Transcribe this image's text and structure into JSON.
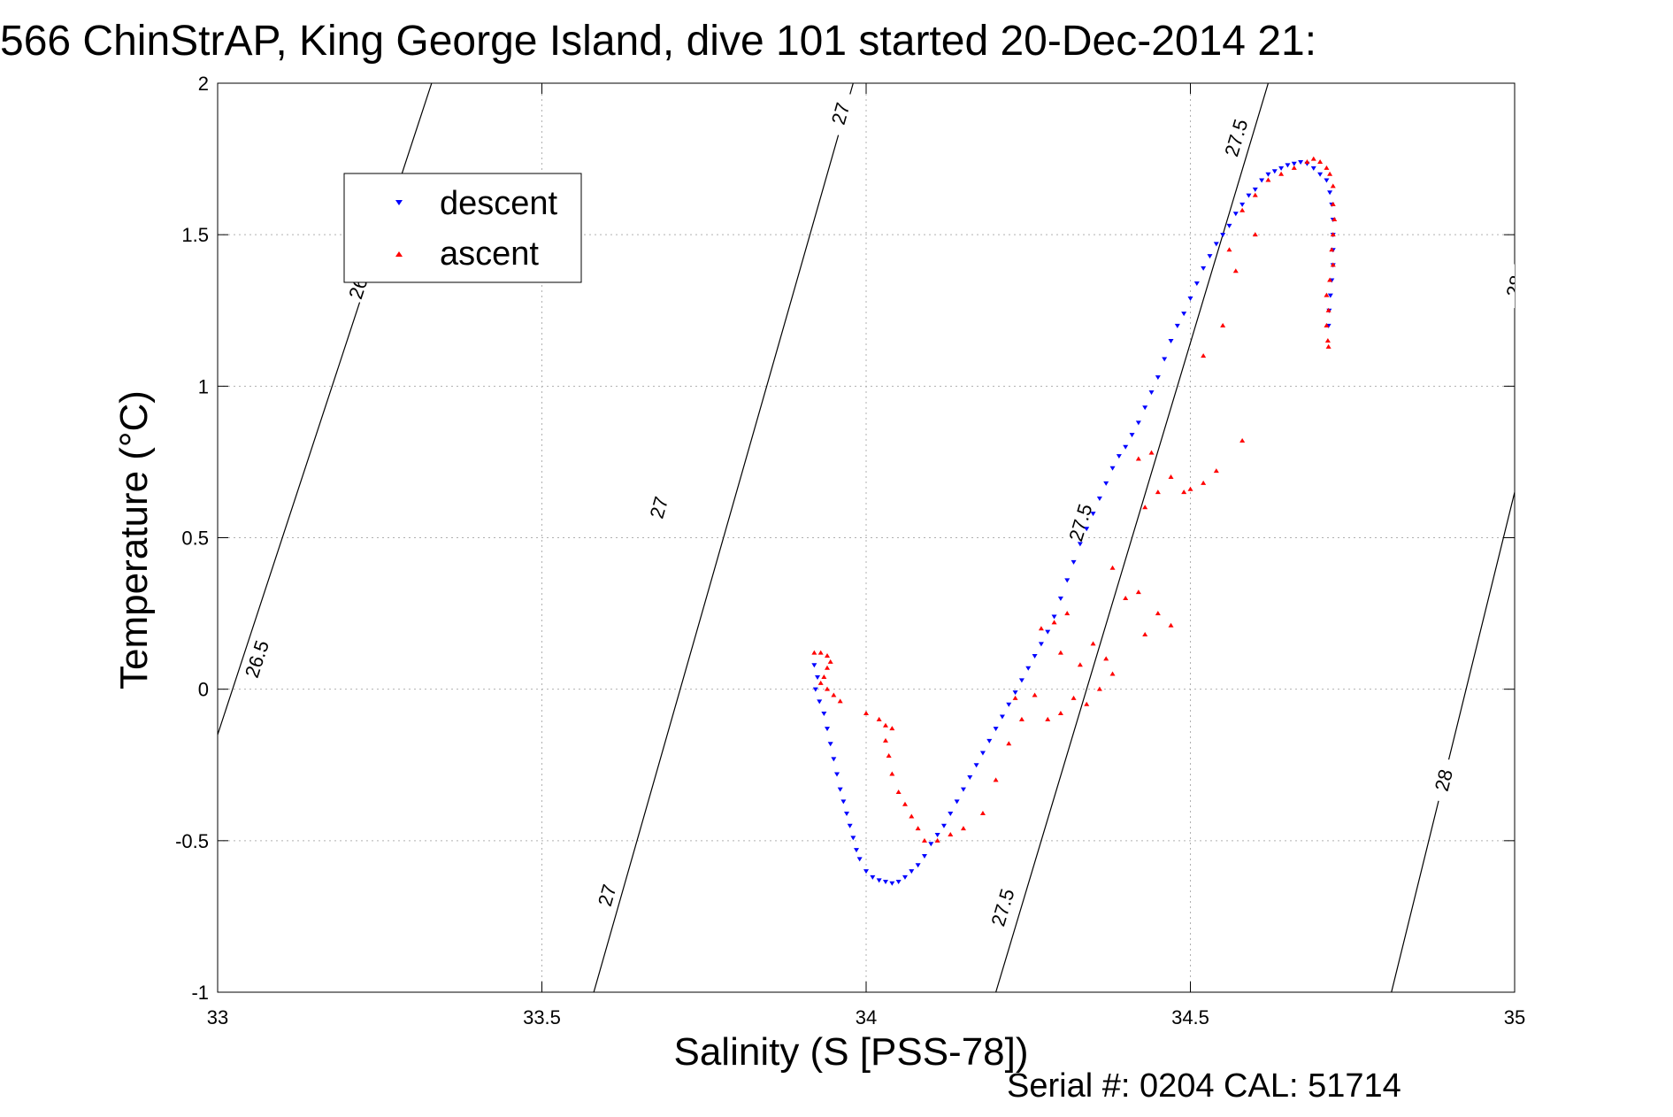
{
  "chart_data": {
    "type": "scatter",
    "title": "566 ChinStrAP, King George Island, dive 101 started 20-Dec-2014 21:",
    "xlabel": "Salinity (S [PSS-78])",
    "ylabel": "Temperature (°C)",
    "footer": "Serial #: 0204  CAL: 51714",
    "xlim": [
      33,
      35
    ],
    "ylim": [
      -1,
      2
    ],
    "xticks": [
      33,
      33.5,
      34,
      34.5,
      35
    ],
    "xtick_labels": [
      "33",
      "33.5",
      "34",
      "34.5",
      "35"
    ],
    "yticks": [
      -1,
      -0.5,
      0,
      0.5,
      1,
      1.5,
      2
    ],
    "ytick_labels": [
      "-1",
      "-0.5",
      "0",
      "0.5",
      "1",
      "1.5",
      "2"
    ],
    "grid": true,
    "legend_position": "top-left",
    "legend": [
      "descent",
      "ascent"
    ],
    "colors": {
      "descent": "#0000ff",
      "ascent": "#ff0000",
      "contour": "#000000",
      "grid": "#b0b0b0"
    },
    "density_contours": [
      {
        "value": "26.5",
        "points": [
          [
            33.0,
            -0.15
          ],
          [
            33.33,
            2.0
          ]
        ],
        "labels": [
          [
            33.06,
            0.1
          ],
          [
            33.22,
            1.35
          ]
        ]
      },
      {
        "value": "27",
        "points": [
          [
            33.58,
            -1.0
          ],
          [
            33.98,
            2.0
          ]
        ],
        "labels": [
          [
            33.6,
            -0.68
          ],
          [
            33.68,
            0.6
          ],
          [
            33.96,
            1.9
          ]
        ]
      },
      {
        "value": "27.5",
        "points": [
          [
            34.2,
            -1.0
          ],
          [
            34.62,
            2.0
          ]
        ],
        "labels": [
          [
            34.21,
            -0.72
          ],
          [
            34.33,
            0.55
          ],
          [
            34.57,
            1.82
          ]
        ]
      },
      {
        "value": "28",
        "points": [
          [
            34.81,
            -1.0
          ],
          [
            35.0,
            0.65
          ],
          [
            35.17,
            2.0
          ]
        ],
        "labels": [
          [
            34.89,
            -0.3
          ],
          [
            35.0,
            1.33
          ]
        ]
      }
    ],
    "series": [
      {
        "name": "descent",
        "marker": "triangle-down",
        "points": [
          [
            33.92,
            0.08
          ],
          [
            33.925,
            0.04
          ],
          [
            33.922,
            0.0
          ],
          [
            33.928,
            -0.04
          ],
          [
            33.935,
            -0.08
          ],
          [
            33.94,
            -0.13
          ],
          [
            33.945,
            -0.18
          ],
          [
            33.95,
            -0.23
          ],
          [
            33.955,
            -0.28
          ],
          [
            33.96,
            -0.33
          ],
          [
            33.965,
            -0.37
          ],
          [
            33.97,
            -0.41
          ],
          [
            33.975,
            -0.45
          ],
          [
            33.98,
            -0.49
          ],
          [
            33.985,
            -0.53
          ],
          [
            33.99,
            -0.56
          ],
          [
            34.0,
            -0.6
          ],
          [
            34.01,
            -0.62
          ],
          [
            34.02,
            -0.63
          ],
          [
            34.03,
            -0.635
          ],
          [
            34.04,
            -0.64
          ],
          [
            34.05,
            -0.635
          ],
          [
            34.06,
            -0.62
          ],
          [
            34.07,
            -0.6
          ],
          [
            34.08,
            -0.58
          ],
          [
            34.09,
            -0.55
          ],
          [
            34.1,
            -0.51
          ],
          [
            34.11,
            -0.48
          ],
          [
            34.12,
            -0.45
          ],
          [
            34.13,
            -0.41
          ],
          [
            34.14,
            -0.37
          ],
          [
            34.15,
            -0.33
          ],
          [
            34.16,
            -0.29
          ],
          [
            34.17,
            -0.25
          ],
          [
            34.18,
            -0.21
          ],
          [
            34.19,
            -0.17
          ],
          [
            34.2,
            -0.13
          ],
          [
            34.21,
            -0.09
          ],
          [
            34.22,
            -0.05
          ],
          [
            34.23,
            -0.01
          ],
          [
            34.24,
            0.03
          ],
          [
            34.25,
            0.07
          ],
          [
            34.26,
            0.11
          ],
          [
            34.27,
            0.15
          ],
          [
            34.28,
            0.19
          ],
          [
            34.29,
            0.24
          ],
          [
            34.3,
            0.3
          ],
          [
            34.31,
            0.36
          ],
          [
            34.32,
            0.42
          ],
          [
            34.33,
            0.48
          ],
          [
            34.34,
            0.53
          ],
          [
            34.35,
            0.58
          ],
          [
            34.36,
            0.63
          ],
          [
            34.37,
            0.68
          ],
          [
            34.38,
            0.73
          ],
          [
            34.39,
            0.77
          ],
          [
            34.4,
            0.8
          ],
          [
            34.41,
            0.84
          ],
          [
            34.42,
            0.88
          ],
          [
            34.43,
            0.93
          ],
          [
            34.44,
            0.98
          ],
          [
            34.45,
            1.03
          ],
          [
            34.46,
            1.09
          ],
          [
            34.47,
            1.15
          ],
          [
            34.48,
            1.2
          ],
          [
            34.49,
            1.24
          ],
          [
            34.5,
            1.29
          ],
          [
            34.51,
            1.34
          ],
          [
            34.52,
            1.39
          ],
          [
            34.53,
            1.43
          ],
          [
            34.54,
            1.47
          ],
          [
            34.55,
            1.5
          ],
          [
            34.56,
            1.53
          ],
          [
            34.57,
            1.57
          ],
          [
            34.58,
            1.6
          ],
          [
            34.59,
            1.63
          ],
          [
            34.6,
            1.65
          ],
          [
            34.61,
            1.68
          ],
          [
            34.62,
            1.7
          ],
          [
            34.63,
            1.71
          ],
          [
            34.64,
            1.72
          ],
          [
            34.65,
            1.73
          ],
          [
            34.66,
            1.735
          ],
          [
            34.67,
            1.74
          ],
          [
            34.68,
            1.735
          ],
          [
            34.69,
            1.72
          ],
          [
            34.7,
            1.7
          ],
          [
            34.71,
            1.68
          ],
          [
            34.715,
            1.64
          ],
          [
            34.718,
            1.6
          ],
          [
            34.72,
            1.55
          ],
          [
            34.72,
            1.5
          ],
          [
            34.72,
            1.45
          ],
          [
            34.72,
            1.4
          ],
          [
            34.718,
            1.35
          ],
          [
            34.716,
            1.3
          ],
          [
            34.714,
            1.25
          ],
          [
            34.713,
            1.2
          ]
        ]
      },
      {
        "name": "ascent",
        "marker": "triangle-up",
        "points": [
          [
            33.92,
            0.12
          ],
          [
            33.93,
            0.12
          ],
          [
            33.94,
            0.11
          ],
          [
            33.945,
            0.09
          ],
          [
            33.94,
            0.07
          ],
          [
            33.935,
            0.04
          ],
          [
            33.93,
            0.02
          ],
          [
            33.94,
            0.0
          ],
          [
            33.95,
            -0.02
          ],
          [
            33.96,
            -0.04
          ],
          [
            34.0,
            -0.08
          ],
          [
            34.02,
            -0.1
          ],
          [
            34.03,
            -0.12
          ],
          [
            34.04,
            -0.13
          ],
          [
            34.03,
            -0.17
          ],
          [
            34.035,
            -0.22
          ],
          [
            34.04,
            -0.28
          ],
          [
            34.05,
            -0.34
          ],
          [
            34.06,
            -0.38
          ],
          [
            34.07,
            -0.42
          ],
          [
            34.08,
            -0.46
          ],
          [
            34.09,
            -0.5
          ],
          [
            34.11,
            -0.5
          ],
          [
            34.13,
            -0.48
          ],
          [
            34.15,
            -0.46
          ],
          [
            34.18,
            -0.41
          ],
          [
            34.2,
            -0.3
          ],
          [
            34.22,
            -0.18
          ],
          [
            34.24,
            -0.1
          ],
          [
            34.23,
            -0.03
          ],
          [
            34.26,
            -0.02
          ],
          [
            34.28,
            -0.1
          ],
          [
            34.3,
            -0.08
          ],
          [
            34.32,
            -0.03
          ],
          [
            34.34,
            -0.05
          ],
          [
            34.36,
            0.0
          ],
          [
            34.38,
            0.05
          ],
          [
            34.3,
            0.12
          ],
          [
            34.33,
            0.08
          ],
          [
            34.27,
            0.2
          ],
          [
            34.29,
            0.22
          ],
          [
            34.31,
            0.25
          ],
          [
            34.35,
            0.15
          ],
          [
            34.37,
            0.1
          ],
          [
            34.4,
            0.3
          ],
          [
            34.38,
            0.4
          ],
          [
            34.42,
            0.32
          ],
          [
            34.43,
            0.18
          ],
          [
            34.45,
            0.25
          ],
          [
            34.47,
            0.21
          ],
          [
            34.43,
            0.6
          ],
          [
            34.45,
            0.65
          ],
          [
            34.42,
            0.76
          ],
          [
            34.44,
            0.78
          ],
          [
            34.47,
            0.7
          ],
          [
            34.49,
            0.65
          ],
          [
            34.52,
            0.68
          ],
          [
            34.5,
            0.66
          ],
          [
            34.54,
            0.72
          ],
          [
            34.58,
            0.82
          ],
          [
            34.52,
            1.1
          ],
          [
            34.55,
            1.2
          ],
          [
            34.57,
            1.38
          ],
          [
            34.56,
            1.45
          ],
          [
            34.6,
            1.5
          ],
          [
            34.58,
            1.58
          ],
          [
            34.6,
            1.63
          ],
          [
            34.62,
            1.68
          ],
          [
            34.64,
            1.7
          ],
          [
            34.66,
            1.72
          ],
          [
            34.68,
            1.74
          ],
          [
            34.69,
            1.75
          ],
          [
            34.7,
            1.74
          ],
          [
            34.71,
            1.72
          ],
          [
            34.715,
            1.7
          ],
          [
            34.72,
            1.66
          ],
          [
            34.72,
            1.6
          ],
          [
            34.722,
            1.55
          ],
          [
            34.72,
            1.5
          ],
          [
            34.718,
            1.45
          ],
          [
            34.72,
            1.4
          ],
          [
            34.715,
            1.35
          ],
          [
            34.71,
            1.3
          ],
          [
            34.713,
            1.25
          ],
          [
            34.71,
            1.2
          ],
          [
            34.712,
            1.15
          ],
          [
            34.713,
            1.13
          ]
        ]
      }
    ]
  }
}
